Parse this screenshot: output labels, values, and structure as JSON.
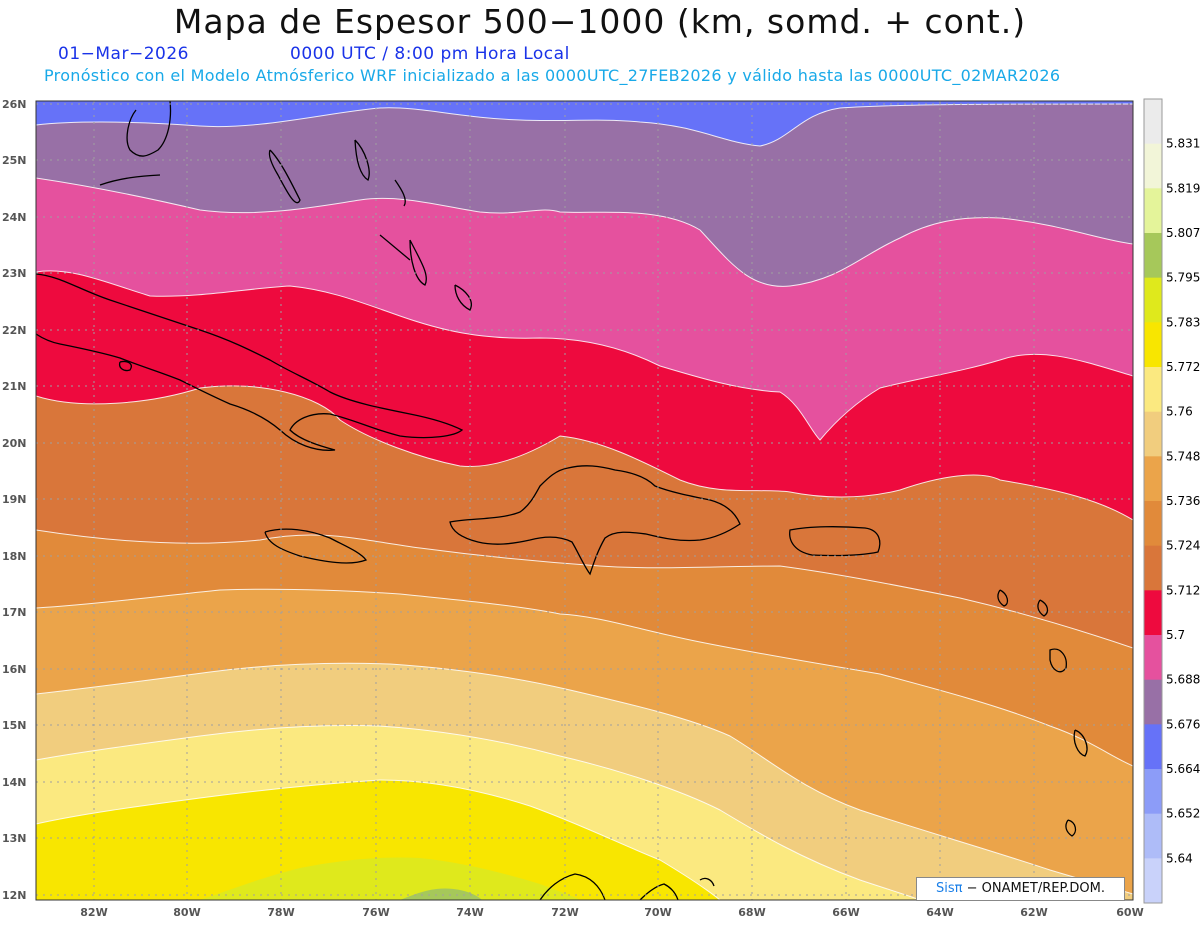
{
  "title": "Mapa de Espesor 500−1000 (km, somd. + cont.)",
  "date_text": "01−Mar−2026",
  "time_text": "0000 UTC / 8:00 pm Hora Local",
  "forecast_text": "Pronóstico con el Modelo Atmósferico WRF inicializado a las 0000UTC_27FEB2026 y válido hasta las  0000UTC_02MAR2026",
  "lat_labels": [
    "26N",
    "25N",
    "24N",
    "23N",
    "22N",
    "21N",
    "20N",
    "19N",
    "18N",
    "17N",
    "16N",
    "15N",
    "14N",
    "13N",
    "12N"
  ],
  "lon_labels": [
    "82W",
    "80W",
    "78W",
    "76W",
    "74W",
    "72W",
    "70W",
    "68W",
    "66W",
    "64W",
    "62W",
    "60W"
  ],
  "colorbar": {
    "labels": [
      "5.831",
      "5.819",
      "5.807",
      "5.795",
      "5.783",
      "5.772",
      "5.76",
      "5.748",
      "5.736",
      "5.724",
      "5.712",
      "5.7",
      "5.688",
      "5.676",
      "5.664",
      "5.652",
      "5.64"
    ],
    "colors": [
      "#ebebeb",
      "#f2f5d8",
      "#e4f49a",
      "#a6c85a",
      "#dfe91c",
      "#f8e600",
      "#fbe980",
      "#f1cd7e",
      "#eba44a",
      "#e18a3a",
      "#d9763a",
      "#ee0a3e",
      "#e5519e",
      "#9870a6",
      "#6672f8",
      "#8c9cf8",
      "#aebcf8",
      "#c9d2fa"
    ]
  },
  "credit": {
    "sis": "Sisπ",
    "rest": " − ONAMET/REP.DOM."
  }
}
